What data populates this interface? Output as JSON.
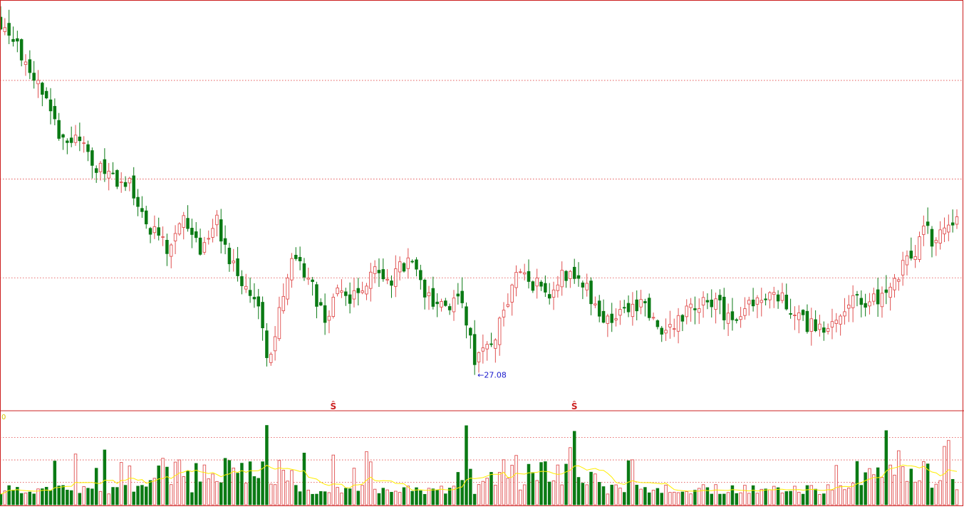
{
  "chart_data": [
    {
      "type": "candlestick",
      "title": "",
      "ylim": [
        25.3,
        46.0
      ],
      "y_gridlines": [
        32.0,
        37.0,
        42.0
      ],
      "grid": true,
      "colors": {
        "up": "#e05050",
        "down": "#0a7a14",
        "grid": "#e04040",
        "annotation": "#1a1acc",
        "marker": "#cc2020"
      },
      "annotations": [
        {
          "label": "27.08",
          "candle_index": 114,
          "value": 27.08
        }
      ],
      "markers": [
        {
          "label": "Ŝ",
          "candle_index": 80
        },
        {
          "label": "Ŝ",
          "candle_index": 138
        }
      ]
    },
    {
      "type": "bar",
      "title": "",
      "indicator_label": "0",
      "ylim": [
        0,
        82000
      ],
      "y_gridlines": [
        20000,
        40000,
        60000
      ],
      "moving_average_color": "#ffee00"
    }
  ]
}
